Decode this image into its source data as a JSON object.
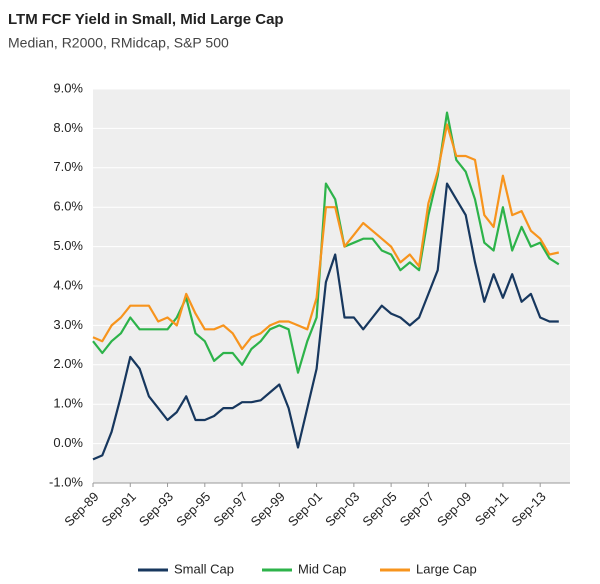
{
  "chart_data": {
    "type": "line",
    "title": "LTM FCF Yield in Small, Mid  Large Cap",
    "subtitle": "Median, R2000, RMidcap, S&P 500",
    "categories": [
      "Sep-89",
      null,
      null,
      null,
      "Sep-91",
      null,
      null,
      null,
      "Sep-93",
      null,
      null,
      null,
      "Sep-95",
      null,
      null,
      null,
      "Sep-97",
      null,
      null,
      null,
      "Sep-99",
      null,
      null,
      null,
      "Sep-01",
      null,
      null,
      null,
      "Sep-03",
      null,
      null,
      null,
      "Sep-05",
      null,
      null,
      null,
      "Sep-07",
      null,
      null,
      null,
      "Sep-09",
      null,
      null,
      null,
      "Sep-11",
      null,
      null,
      null,
      "Sep-13",
      null,
      null
    ],
    "series": [
      {
        "name": "Small Cap",
        "color": "#17375e",
        "values": [
          -0.4,
          -0.3,
          0.3,
          1.2,
          2.2,
          1.9,
          1.2,
          0.9,
          0.6,
          0.8,
          1.2,
          0.6,
          0.6,
          0.7,
          0.9,
          0.9,
          1.05,
          1.05,
          1.1,
          1.3,
          1.5,
          0.9,
          -0.1,
          0.9,
          1.9,
          4.1,
          4.8,
          3.2,
          3.2,
          2.9,
          3.2,
          3.5,
          3.3,
          3.2,
          3.0,
          3.2,
          3.8,
          4.4,
          6.6,
          6.2,
          5.8,
          4.6,
          3.6,
          4.3,
          3.7,
          4.3,
          3.6,
          3.8,
          3.2,
          3.1,
          3.1
        ]
      },
      {
        "name": "Mid Cap",
        "color": "#2db34a",
        "values": [
          2.6,
          2.3,
          2.6,
          2.8,
          3.2,
          2.9,
          2.9,
          2.9,
          2.9,
          3.2,
          3.7,
          2.8,
          2.6,
          2.1,
          2.3,
          2.3,
          2.0,
          2.4,
          2.6,
          2.9,
          3.0,
          2.9,
          1.8,
          2.6,
          3.2,
          6.6,
          6.2,
          5.0,
          5.1,
          5.2,
          5.2,
          4.9,
          4.8,
          4.4,
          4.6,
          4.4,
          5.8,
          6.8,
          8.4,
          7.2,
          6.9,
          6.2,
          5.1,
          4.9,
          6.0,
          4.9,
          5.5,
          5.0,
          5.1,
          4.7,
          4.55
        ]
      },
      {
        "name": "Large Cap",
        "color": "#f7941d",
        "values": [
          2.7,
          2.6,
          3.0,
          3.2,
          3.5,
          3.5,
          3.5,
          3.1,
          3.2,
          3.0,
          3.8,
          3.3,
          2.9,
          2.9,
          3.0,
          2.8,
          2.4,
          2.7,
          2.8,
          3.0,
          3.1,
          3.1,
          3.0,
          2.9,
          3.7,
          6.0,
          6.0,
          5.0,
          5.3,
          5.6,
          5.4,
          5.2,
          5.0,
          4.6,
          4.8,
          4.5,
          6.1,
          6.9,
          8.1,
          7.3,
          7.3,
          7.2,
          5.8,
          5.5,
          6.8,
          5.8,
          5.9,
          5.4,
          5.2,
          4.8,
          4.85
        ]
      }
    ],
    "ylim": [
      -1,
      9
    ],
    "yticks": [
      {
        "value": -1,
        "label": "-1.0%"
      },
      {
        "value": 0,
        "label": "0.0%"
      },
      {
        "value": 1,
        "label": "1.0%"
      },
      {
        "value": 2,
        "label": "2.0%"
      },
      {
        "value": 3,
        "label": "3.0%"
      },
      {
        "value": 4,
        "label": "4.0%"
      },
      {
        "value": 5,
        "label": "5.0%"
      },
      {
        "value": 6,
        "label": "6.0%"
      },
      {
        "value": 7,
        "label": "7.0%"
      },
      {
        "value": 8,
        "label": "8.0%"
      },
      {
        "value": 9,
        "label": "9.0%"
      }
    ],
    "grid": true
  }
}
